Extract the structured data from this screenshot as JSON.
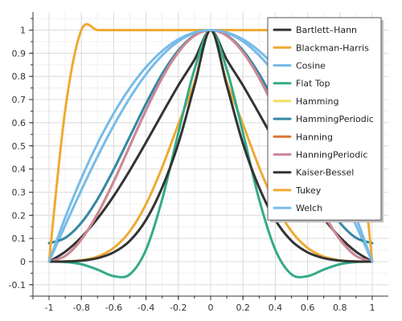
{
  "chart_data": {
    "type": "line",
    "title": "",
    "xlabel": "",
    "ylabel": "",
    "xlim": [
      -1.1,
      1.1
    ],
    "ylim": [
      -0.15,
      1.1
    ],
    "grid": true,
    "legend_position": "top-right",
    "x_ticks": [
      "-1",
      "-0.8",
      "-0.6",
      "-0.4",
      "-0.2",
      "0",
      "0.2",
      "0.4",
      "0.6",
      "0.8",
      "1"
    ],
    "x_tick_values": [
      -1,
      -0.8,
      -0.6,
      -0.4,
      -0.2,
      0,
      0.2,
      0.4,
      0.6,
      0.8,
      1
    ],
    "y_ticks": [
      "-0.1",
      "0",
      "0.1",
      "0.2",
      "0.3",
      "0.4",
      "0.5",
      "0.6",
      "0.7",
      "0.8",
      "0.9",
      "1"
    ],
    "y_tick_values": [
      -0.1,
      0,
      0.1,
      0.2,
      0.3,
      0.4,
      0.5,
      0.6,
      0.7,
      0.8,
      0.9,
      1
    ],
    "series": [
      {
        "name": "Bartlett–Hann",
        "color": "#333333",
        "values": [
          0,
          0.0427,
          0.1052,
          0.1861,
          0.2834,
          0.3943,
          0.5147,
          0.6392,
          0.7609,
          0.8721,
          1,
          0.8721,
          0.7609,
          0.6392,
          0.5147,
          0.3943,
          0.2834,
          0.1861,
          0.1052,
          0.0427,
          0
        ]
      },
      {
        "name": "Blackman-Harris",
        "color": "#eeaa33",
        "values": [
          0,
          0.001,
          0.0059,
          0.0217,
          0.0592,
          0.1312,
          0.2478,
          0.4076,
          0.5936,
          0.7748,
          1,
          0.7748,
          0.5936,
          0.4076,
          0.2478,
          0.1312,
          0.0592,
          0.0217,
          0.0059,
          0.001,
          0
        ]
      },
      {
        "name": "Cosine",
        "color": "#77bbe8",
        "values": [
          0,
          0.1564,
          0.309,
          0.454,
          0.5878,
          0.7071,
          0.809,
          0.891,
          0.9511,
          0.9877,
          1,
          0.9877,
          0.9511,
          0.891,
          0.809,
          0.7071,
          0.5878,
          0.454,
          0.309,
          0.1564,
          0
        ]
      },
      {
        "name": "Flat Top",
        "color": "#33aa88",
        "values": [
          0,
          -0.0017,
          -0.0112,
          -0.0344,
          -0.0628,
          -0.0547,
          0.0513,
          0.2689,
          0.556,
          0.83,
          1,
          0.83,
          0.556,
          0.2689,
          0.0513,
          -0.0547,
          -0.0628,
          -0.0344,
          -0.0112,
          -0.0017,
          0
        ]
      },
      {
        "name": "Hamming",
        "color": "#f0dd66",
        "values": [
          0.08,
          0.1025,
          0.1679,
          0.2696,
          0.3979,
          0.54,
          0.6821,
          0.8104,
          0.9121,
          0.9775,
          1,
          0.9775,
          0.9121,
          0.8104,
          0.6821,
          0.54,
          0.3979,
          0.2696,
          0.1679,
          0.1025,
          0.08
        ]
      },
      {
        "name": "HammingPeriodic",
        "color": "#3388aa",
        "values": [
          0.08,
          0.1025,
          0.1679,
          0.2696,
          0.3979,
          0.54,
          0.6821,
          0.8104,
          0.9121,
          0.9775,
          1,
          0.9775,
          0.9121,
          0.8104,
          0.6821,
          0.54,
          0.3979,
          0.2696,
          0.1679,
          0.1025,
          0.08
        ]
      },
      {
        "name": "Hanning",
        "color": "#dd7733",
        "values": [
          0,
          0.0245,
          0.0955,
          0.2061,
          0.3455,
          0.5,
          0.6545,
          0.7939,
          0.9045,
          0.9755,
          1,
          0.9755,
          0.9045,
          0.7939,
          0.6545,
          0.5,
          0.3455,
          0.2061,
          0.0955,
          0.0245,
          0
        ]
      },
      {
        "name": "HanningPeriodic",
        "color": "#cc8899",
        "values": [
          0,
          0.0245,
          0.0955,
          0.2061,
          0.3455,
          0.5,
          0.6545,
          0.7939,
          0.9045,
          0.9755,
          1,
          0.9755,
          0.9045,
          0.7939,
          0.6545,
          0.5,
          0.3455,
          0.2061,
          0.0955,
          0.0245,
          0
        ]
      },
      {
        "name": "Kaiser-Bessel",
        "color": "#333333",
        "values": [
          0,
          0.0005,
          0.004,
          0.015,
          0.04,
          0.09,
          0.18,
          0.32,
          0.51,
          0.76,
          1,
          0.76,
          0.51,
          0.32,
          0.18,
          0.09,
          0.04,
          0.015,
          0.004,
          0.0005,
          0
        ]
      },
      {
        "name": "Tukey",
        "color": "#eeaa33",
        "values": [
          0,
          0.6545,
          1,
          1,
          1,
          1,
          1,
          1,
          1,
          1,
          1,
          1,
          1,
          1,
          1,
          1,
          1,
          1,
          1,
          0.6545,
          0
        ]
      },
      {
        "name": "Welch",
        "color": "#77bbe8",
        "values": [
          0,
          0.19,
          0.36,
          0.51,
          0.64,
          0.75,
          0.84,
          0.91,
          0.96,
          0.99,
          1,
          0.99,
          0.96,
          0.91,
          0.84,
          0.75,
          0.64,
          0.51,
          0.36,
          0.19,
          0
        ]
      }
    ],
    "x": [
      -1,
      -0.9,
      -0.8,
      -0.7,
      -0.6,
      -0.5,
      -0.4,
      -0.3,
      -0.2,
      -0.1,
      0,
      0.1,
      0.2,
      0.3,
      0.4,
      0.5,
      0.6,
      0.7,
      0.8,
      0.9,
      1
    ]
  }
}
